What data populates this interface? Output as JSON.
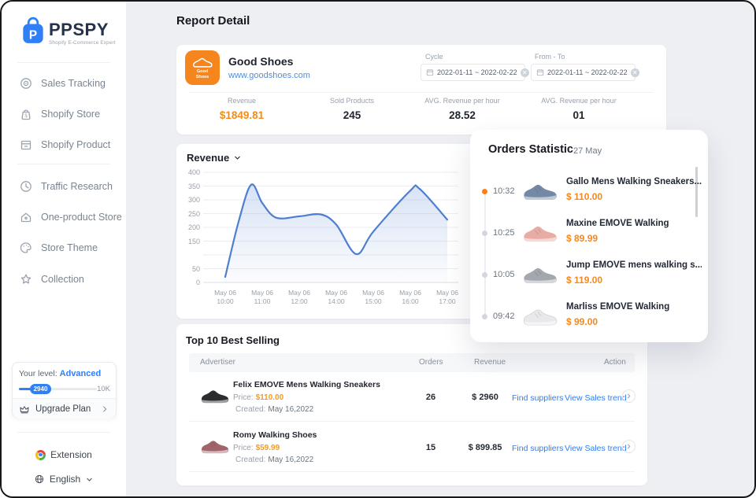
{
  "colors": {
    "accent_blue": "#2f7ff7",
    "accent_orange": "#f5821f",
    "price_orange": "#f59b22",
    "link_blue": "#2f7bf5",
    "chart_line": "#4e7ed0"
  },
  "sidebar": {
    "logo": {
      "brand": "PPSPY",
      "tagline": "Shopify E-Commerce Expert"
    },
    "menu_top": [
      {
        "label": "Sales Tracking"
      },
      {
        "label": "Shopify Store"
      },
      {
        "label": "Shopify Product"
      }
    ],
    "menu_bottom": [
      {
        "label": "Traffic Research"
      },
      {
        "label": "One-product Store"
      },
      {
        "label": "Store Theme"
      },
      {
        "label": "Collection"
      }
    ],
    "level": {
      "label": "Your level:",
      "value": "Advanced",
      "progress_value": "2940",
      "progress_max": "10K",
      "upgrade_label": "Upgrade Plan"
    },
    "footer": {
      "extension": "Extension",
      "language": "English"
    }
  },
  "report": {
    "title": "Report Detail",
    "store": {
      "name": "Good Shoes",
      "url": "www.goodshoes.com",
      "logo_line1": "Good",
      "logo_line2": "Shoes"
    },
    "filters": {
      "cycle_label": "Cycle",
      "from_to_label": "From - To",
      "cycle_range": "2022-01-11  ~  2022-02-22",
      "from_to_range": "2022-01-11  ~  2022-02-22"
    },
    "stats": [
      {
        "label": "Revenue",
        "value": "$1849.81"
      },
      {
        "label": "Sold Products",
        "value": "245"
      },
      {
        "label": "AVG. Revenue per hour",
        "value": "28.52"
      },
      {
        "label": "AVG. Revenue per hour",
        "value": "01"
      }
    ]
  },
  "chart_data": {
    "type": "area",
    "title": "Revenue",
    "x_ticks": [
      {
        "date": "May 06",
        "time": "10:00"
      },
      {
        "date": "May 06",
        "time": "11:00"
      },
      {
        "date": "May 06",
        "time": "12:00"
      },
      {
        "date": "May 06",
        "time": "14:00"
      },
      {
        "date": "May 06",
        "time": "15:00"
      },
      {
        "date": "May 06",
        "time": "16:00"
      },
      {
        "date": "May 06",
        "time": "17:00"
      }
    ],
    "y_ticks_shown": [
      400,
      350,
      300,
      250,
      200,
      150,
      50,
      0
    ],
    "ylim": [
      0,
      400
    ],
    "grid_step": 50,
    "legend": "none",
    "series": [
      {
        "name": "Revenue",
        "points": [
          [
            0,
            20
          ],
          [
            0.06,
            220
          ],
          [
            0.117,
            355
          ],
          [
            0.167,
            288
          ],
          [
            0.23,
            235
          ],
          [
            0.333,
            240
          ],
          [
            0.43,
            247
          ],
          [
            0.5,
            210
          ],
          [
            0.59,
            103
          ],
          [
            0.667,
            185
          ],
          [
            0.833,
            333
          ],
          [
            0.875,
            340
          ],
          [
            1,
            228
          ]
        ]
      }
    ],
    "line_color": "#4e7ed0"
  },
  "orders": {
    "title": "Orders Statistic",
    "date": "27 May",
    "items": [
      {
        "time": "10:32",
        "name": "Gallo Mens Walking Sneakers...",
        "price": "$ 110.00",
        "active": true,
        "img_color": "#7489a6"
      },
      {
        "time": "10:25",
        "name": "Maxine EMOVE Walking",
        "price": "$ 89.99",
        "active": false,
        "img_color": "#e7aca6"
      },
      {
        "time": "10:05",
        "name": "Jump EMOVE mens walking s...",
        "price": "$ 119.00",
        "active": false,
        "img_color": "#a3a8af"
      },
      {
        "time": "09:42",
        "name": "Marliss EMOVE Walking",
        "price": "$ 99.00",
        "active": false,
        "img_color": "#e9e9ec"
      }
    ]
  },
  "top_selling": {
    "title": "Top 10 Best Selling",
    "columns": [
      "Advertiser",
      "Orders",
      "Revenue",
      "Action"
    ],
    "rows": [
      {
        "name": "Felix EMOVE Mens Walking Sneakers",
        "price_label": "Price:",
        "price": "$110.00",
        "created_label": "Created:",
        "created": "May 16,2022",
        "orders": "26",
        "revenue": "$ 2960",
        "link1": "Find suppliers",
        "link2": "View Sales trend",
        "img_color": "#2c2d31"
      },
      {
        "name": "Romy Walking Shoes",
        "price_label": "Price:",
        "price": "$59.99",
        "created_label": "Created:",
        "created": "May 16,2022",
        "orders": "15",
        "revenue": "$ 899.85",
        "link1": "Find suppliers",
        "link2": "View Sales trend",
        "img_color": "#a2646b"
      }
    ]
  }
}
